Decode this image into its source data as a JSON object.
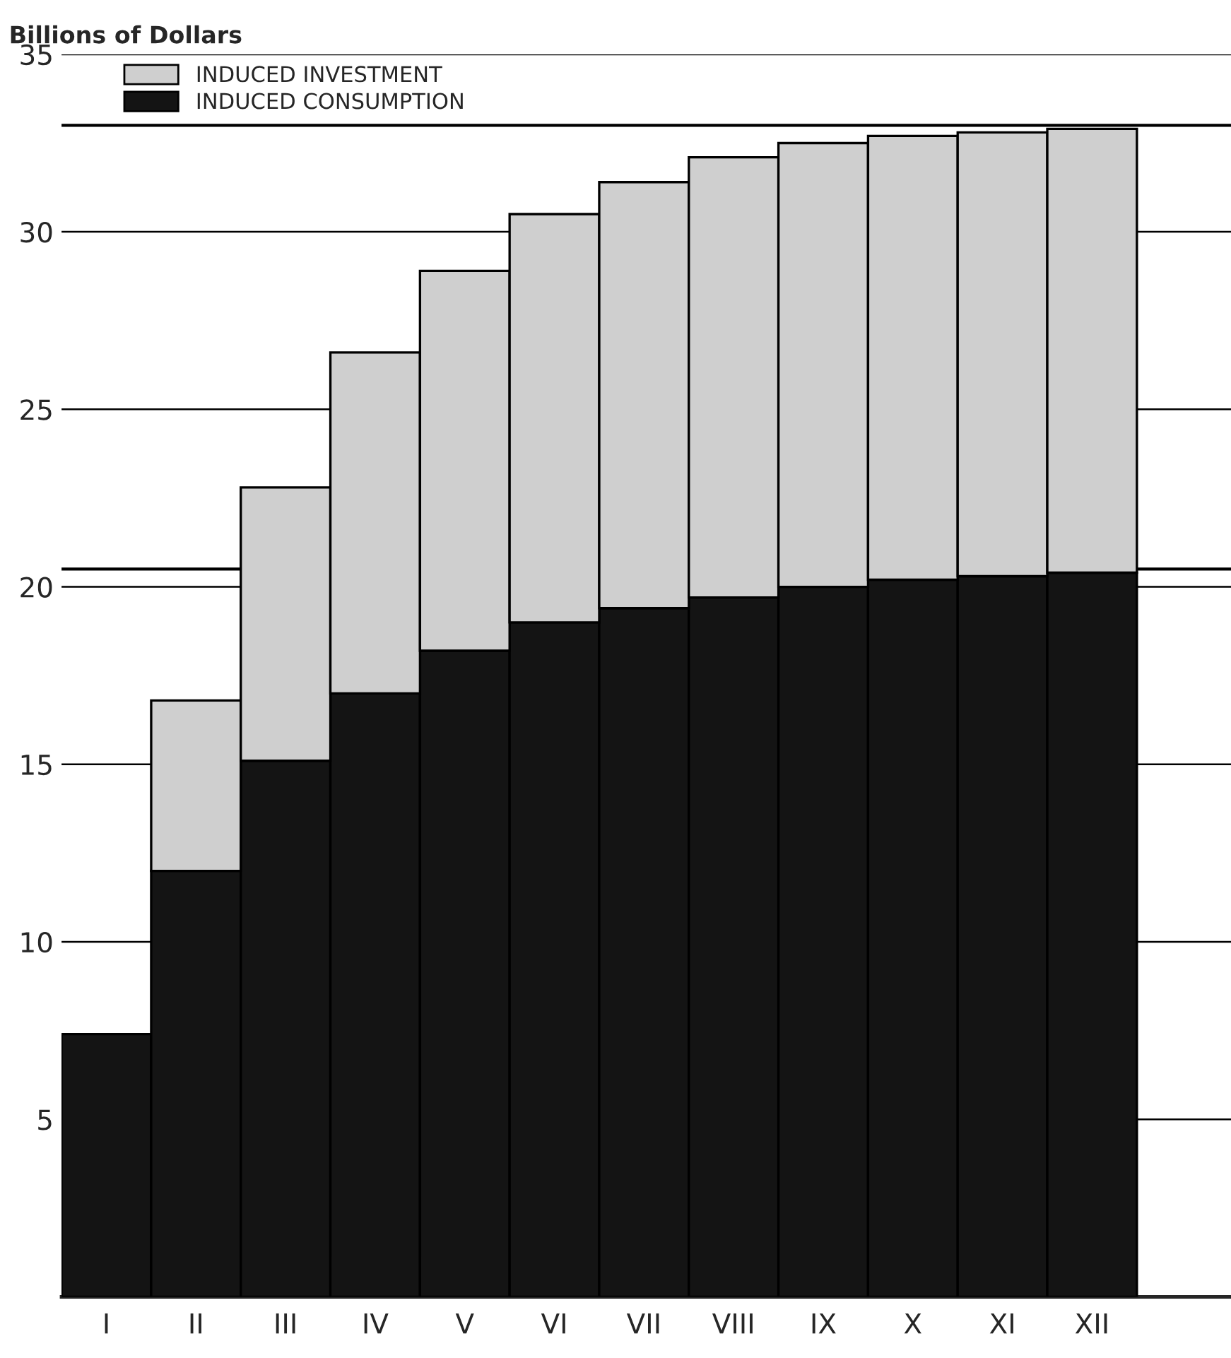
{
  "chart_data": {
    "type": "bar",
    "stacked": true,
    "ylabel": "Billions of Dollars",
    "categories": [
      "I",
      "II",
      "III",
      "IV",
      "V",
      "VI",
      "VII",
      "VIII",
      "IX",
      "X",
      "XI",
      "XII"
    ],
    "series": [
      {
        "name": "INDUCED CONSUMPTION",
        "color": "#141414",
        "values": [
          7.4,
          12.0,
          15.1,
          17.0,
          18.2,
          19.0,
          19.4,
          19.7,
          20.0,
          20.2,
          20.3,
          20.4
        ]
      },
      {
        "name": "INDUCED INVESTMENT",
        "color": "#cfcfcf",
        "values": [
          null,
          4.8,
          7.7,
          9.6,
          10.7,
          11.5,
          12.0,
          12.4,
          12.5,
          12.5,
          12.5,
          12.5
        ]
      }
    ],
    "ylim": [
      0,
      35
    ],
    "yticks": [
      {
        "value": 0,
        "label": null
      },
      5,
      10,
      15,
      20,
      25,
      30,
      35
    ],
    "ref_lines": [
      {
        "axis": "y",
        "value": 33.0,
        "color": "#000000"
      },
      {
        "axis": "y",
        "value": 20.5,
        "color": "#000000"
      }
    ],
    "grid": "y",
    "legend": "top left"
  }
}
